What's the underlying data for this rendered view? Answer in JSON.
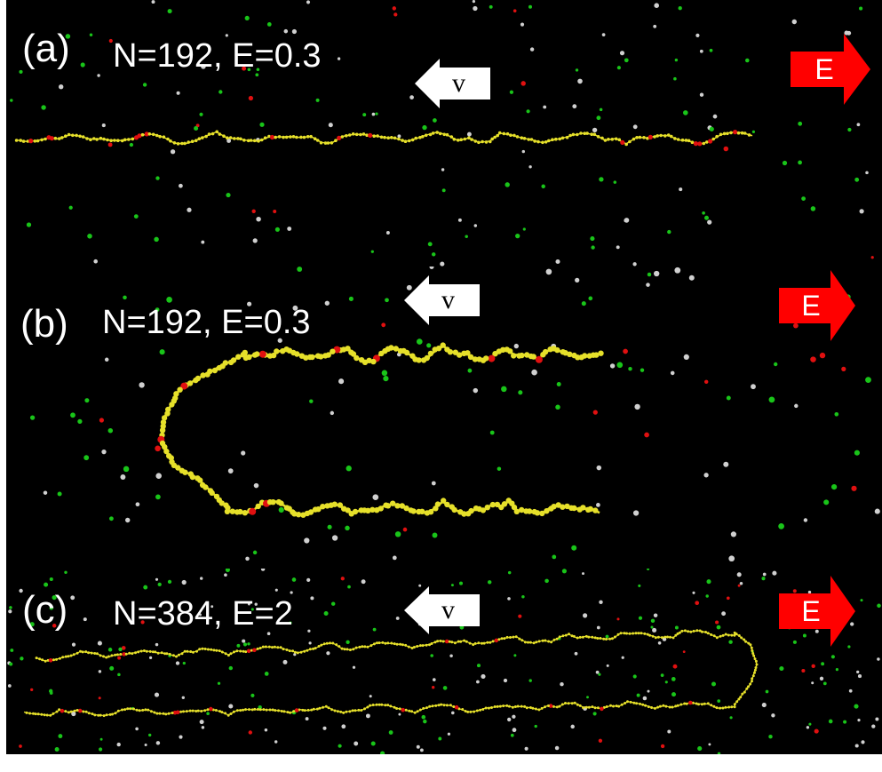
{
  "panels": [
    {
      "id": "a",
      "label": "(a)",
      "params": "N=192, E=0.3"
    },
    {
      "id": "b",
      "label": "(b)",
      "params": "N=192, E=0.3"
    },
    {
      "id": "c",
      "label": "(c)",
      "params": "N=384, E=2"
    }
  ],
  "arrows": {
    "velocity_label": "v",
    "field_label": "E"
  },
  "colors": {
    "background": "#000000",
    "polymer": "#e6e02a",
    "charged_monomer": "#e01010",
    "counterion_green": "#19c419",
    "counterion_white": "#d0d0d0",
    "field_arrow": "#ff0000",
    "velocity_arrow": "#ffffff"
  }
}
